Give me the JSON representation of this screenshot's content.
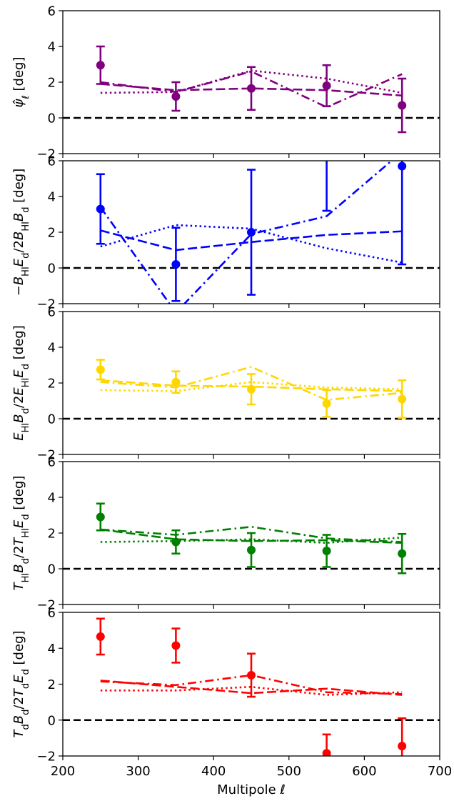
{
  "xlabel": "Multipole ℓ",
  "chart_data": [
    {
      "type": "line",
      "ylabel": "ψ̂_ℓ [deg]",
      "color": "#800080",
      "xlim": [
        200,
        700
      ],
      "ylim": [
        -2,
        6
      ],
      "xticks": [
        200,
        300,
        400,
        500,
        600,
        700
      ],
      "yticks": [
        -2,
        0,
        2,
        4,
        6
      ],
      "x": [
        250,
        350,
        450,
        550,
        650
      ],
      "points": {
        "y": [
          2.95,
          1.2,
          1.65,
          1.8,
          0.7
        ],
        "err": [
          1.05,
          0.8,
          1.2,
          1.15,
          1.5
        ]
      },
      "dashed": [
        1.9,
        1.55,
        1.65,
        1.55,
        1.25
      ],
      "dotted": [
        1.4,
        1.45,
        2.65,
        2.2,
        1.4
      ],
      "dashdot": [
        2.0,
        1.45,
        2.6,
        0.6,
        2.45
      ],
      "reference_line": 0
    },
    {
      "type": "line",
      "ylabel": "−B_HI E_d / 2B_HI B_d [deg]",
      "color": "#0000ff",
      "xlim": [
        200,
        700
      ],
      "ylim": [
        -2,
        6
      ],
      "xticks": [
        200,
        300,
        400,
        500,
        600,
        700
      ],
      "yticks": [
        -2,
        0,
        2,
        4,
        6
      ],
      "x": [
        250,
        350,
        450,
        550,
        650
      ],
      "points": {
        "y": [
          3.3,
          0.2,
          2.0,
          6.9,
          5.7
        ],
        "err": [
          1.95,
          2.05,
          3.5,
          3.7,
          5.5
        ]
      },
      "dashed": [
        2.1,
        1.0,
        1.45,
        1.85,
        2.05
      ],
      "dotted": [
        1.2,
        2.4,
        2.2,
        1.1,
        0.3
      ],
      "dashdot": [
        3.4,
        -2.5,
        1.9,
        2.9,
        6.5
      ],
      "reference_line": 0
    },
    {
      "type": "line",
      "ylabel": "E_HI B_d / 2E_HI E_d [deg]",
      "color": "#ffd700",
      "xlim": [
        200,
        700
      ],
      "ylim": [
        -2,
        6
      ],
      "xticks": [
        200,
        300,
        400,
        500,
        600,
        700
      ],
      "yticks": [
        -2,
        0,
        2,
        4,
        6
      ],
      "x": [
        250,
        350,
        450,
        550,
        650
      ],
      "points": {
        "y": [
          2.75,
          2.05,
          1.65,
          0.85,
          1.1
        ],
        "err": [
          0.55,
          0.6,
          0.85,
          0.75,
          1.05
        ]
      },
      "dashed": [
        2.15,
        1.85,
        1.8,
        1.65,
        1.55
      ],
      "dotted": [
        1.6,
        1.55,
        2.05,
        1.75,
        1.65
      ],
      "dashdot": [
        2.05,
        1.75,
        2.9,
        1.05,
        1.45
      ],
      "reference_line": 0
    },
    {
      "type": "line",
      "ylabel": "T_HI B_d / 2T_HI E_d [deg]",
      "color": "#008000",
      "xlim": [
        200,
        700
      ],
      "ylim": [
        -2,
        6
      ],
      "xticks": [
        200,
        300,
        400,
        500,
        600,
        700
      ],
      "yticks": [
        -2,
        0,
        2,
        4,
        6
      ],
      "x": [
        250,
        350,
        450,
        550,
        650
      ],
      "points": {
        "y": [
          2.9,
          1.5,
          1.05,
          1.0,
          0.85
        ],
        "err": [
          0.75,
          0.65,
          0.95,
          0.9,
          1.1
        ]
      },
      "dashed": [
        2.2,
        1.65,
        1.55,
        1.6,
        1.45
      ],
      "dotted": [
        1.5,
        1.55,
        1.65,
        1.45,
        1.75
      ],
      "dashdot": [
        2.2,
        1.9,
        2.35,
        1.7,
        1.5
      ],
      "reference_line": 0
    },
    {
      "type": "line",
      "ylabel": "T_d B_d / 2T_d E_d [deg]",
      "color": "#ff0000",
      "xlim": [
        200,
        700
      ],
      "ylim": [
        -2,
        6
      ],
      "xticks": [
        200,
        300,
        400,
        500,
        600,
        700
      ],
      "yticks": [
        -2,
        0,
        2,
        4,
        6
      ],
      "x": [
        250,
        350,
        450,
        550,
        650
      ],
      "points": {
        "y": [
          4.65,
          4.15,
          2.5,
          -1.85,
          -1.45
        ],
        "err": [
          1.0,
          0.95,
          1.2,
          1.05,
          1.55
        ]
      },
      "dashed": [
        2.2,
        1.85,
        1.5,
        1.75,
        1.4
      ],
      "dotted": [
        1.65,
        1.65,
        1.85,
        1.4,
        1.55
      ],
      "dashdot": [
        2.15,
        1.95,
        2.5,
        1.55,
        1.45
      ],
      "reference_line": 0
    }
  ]
}
